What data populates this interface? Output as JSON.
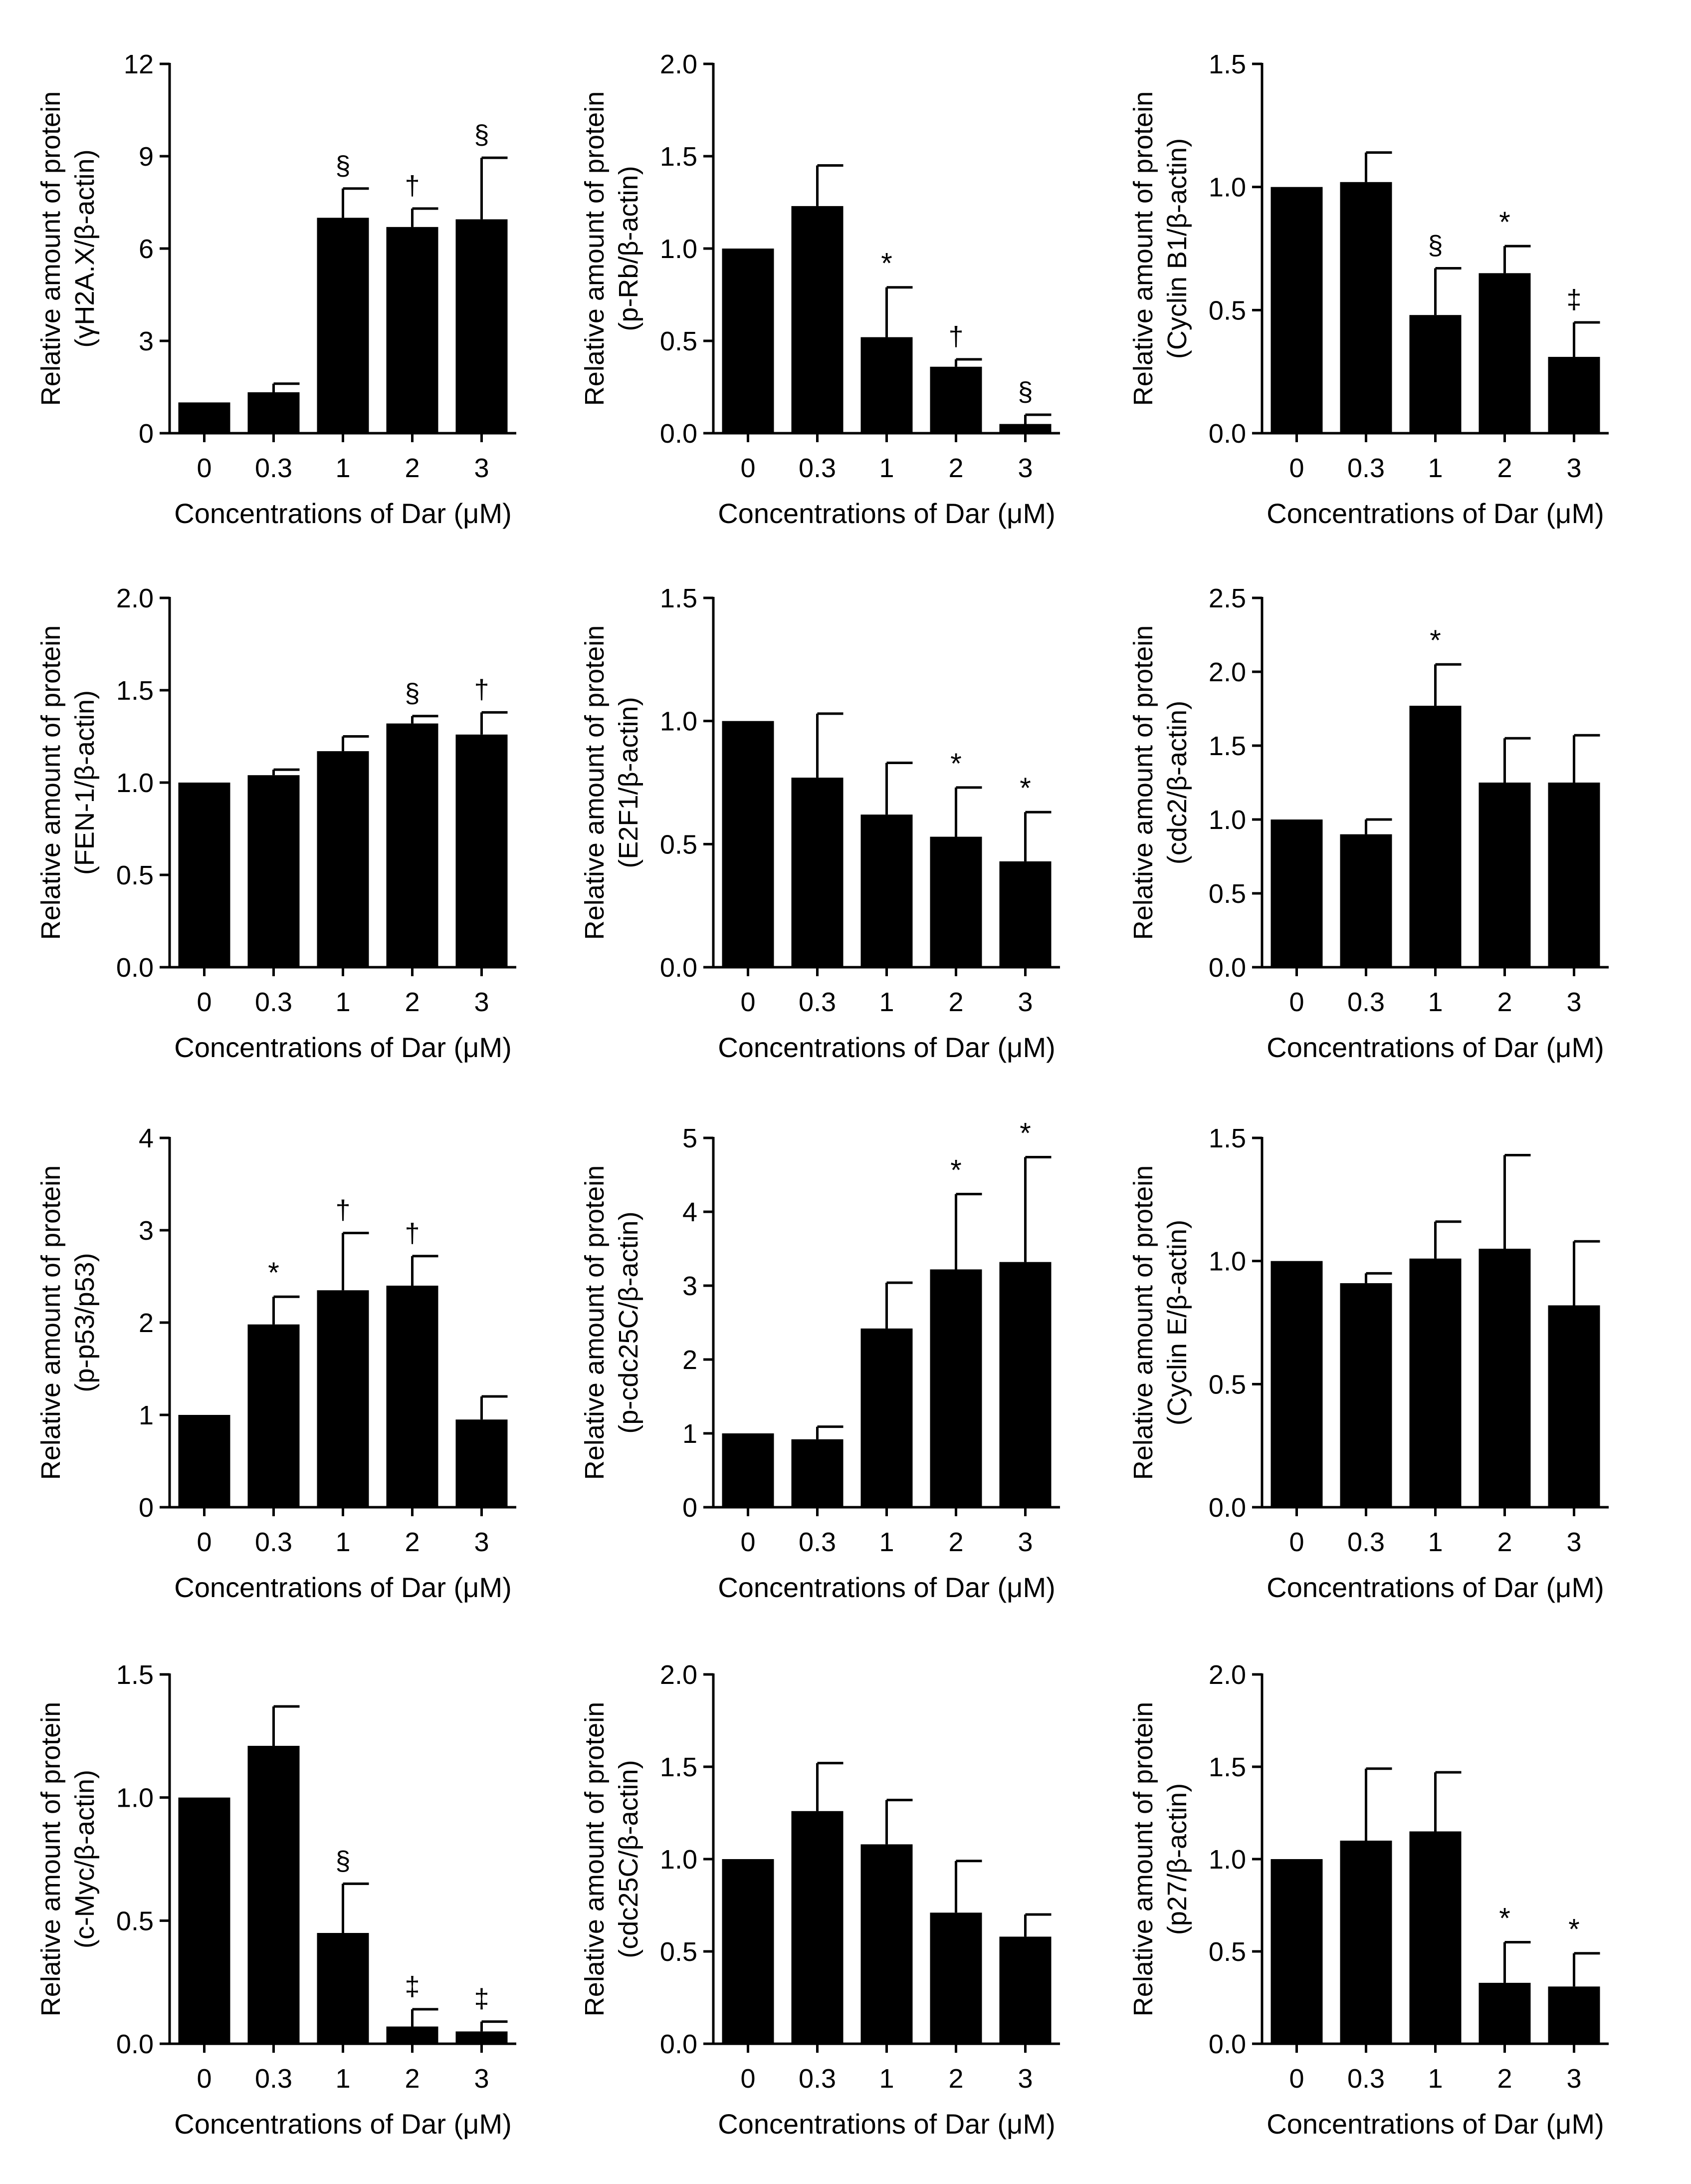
{
  "figure": {
    "bar_color": "#000000",
    "axis_color": "#000000"
  },
  "chart_data": [
    {
      "type": "bar",
      "id": "gamma-h2ax",
      "categories": [
        "0",
        "0.3",
        "1",
        "2",
        "3"
      ],
      "values": [
        1.0,
        1.33,
        7.0,
        6.7,
        6.95
      ],
      "errors": [
        0,
        0.28,
        0.95,
        0.6,
        2.0
      ],
      "marks": [
        "",
        "",
        "§",
        "†",
        "§"
      ],
      "ylim": [
        0,
        12
      ],
      "yticks": [
        "0",
        "3",
        "6",
        "9",
        "12"
      ],
      "ylabel": [
        "Relative amount of protein",
        "(γH2A.X/β-actin)"
      ],
      "xlabel": "Concentrations of Dar (μM)"
    },
    {
      "type": "bar",
      "id": "p-rb",
      "categories": [
        "0",
        "0.3",
        "1",
        "2",
        "3"
      ],
      "values": [
        1.0,
        1.23,
        0.52,
        0.36,
        0.05
      ],
      "errors": [
        0,
        0.22,
        0.27,
        0.04,
        0.05
      ],
      "marks": [
        "",
        "",
        "*",
        "†",
        "§"
      ],
      "ylim": [
        0,
        2.0
      ],
      "yticks": [
        "0.0",
        "0.5",
        "1.0",
        "1.5",
        "2.0"
      ],
      "ylabel": [
        "Relative amount of protein",
        "(p-Rb/β-actin)"
      ],
      "xlabel": "Concentrations of Dar (μM)"
    },
    {
      "type": "bar",
      "id": "cyclin-b1",
      "categories": [
        "0",
        "0.3",
        "1",
        "2",
        "3"
      ],
      "values": [
        1.0,
        1.02,
        0.48,
        0.65,
        0.31
      ],
      "errors": [
        0,
        0.12,
        0.19,
        0.11,
        0.14
      ],
      "marks": [
        "",
        "",
        "§",
        "*",
        "‡"
      ],
      "ylim": [
        0,
        1.5
      ],
      "yticks": [
        "0.0",
        "0.5",
        "1.0",
        "1.5"
      ],
      "ylabel": [
        "Relative amount of protein",
        "(Cyclin B1/β-actin)"
      ],
      "xlabel": "Concentrations of Dar (μM)"
    },
    {
      "type": "bar",
      "id": "fen-1",
      "categories": [
        "0",
        "0.3",
        "1",
        "2",
        "3"
      ],
      "values": [
        1.0,
        1.04,
        1.17,
        1.32,
        1.26
      ],
      "errors": [
        0,
        0.03,
        0.08,
        0.04,
        0.12
      ],
      "marks": [
        "",
        "",
        "",
        "§",
        "†"
      ],
      "ylim": [
        0,
        2.0
      ],
      "yticks": [
        "0.0",
        "0.5",
        "1.0",
        "1.5",
        "2.0"
      ],
      "ylabel": [
        "Relative amount of protein",
        "(FEN-1/β-actin)"
      ],
      "xlabel": "Concentrations of Dar (μM)"
    },
    {
      "type": "bar",
      "id": "e2f1",
      "categories": [
        "0",
        "0.3",
        "1",
        "2",
        "3"
      ],
      "values": [
        1.0,
        0.77,
        0.62,
        0.53,
        0.43
      ],
      "errors": [
        0,
        0.26,
        0.21,
        0.2,
        0.2
      ],
      "marks": [
        "",
        "",
        "",
        "*",
        "*"
      ],
      "ylim": [
        0,
        1.5
      ],
      "yticks": [
        "0.0",
        "0.5",
        "1.0",
        "1.5"
      ],
      "ylabel": [
        "Relative amount of protein",
        "(E2F1/β-actin)"
      ],
      "xlabel": "Concentrations of Dar (μM)"
    },
    {
      "type": "bar",
      "id": "cdc2",
      "categories": [
        "0",
        "0.3",
        "1",
        "2",
        "3"
      ],
      "values": [
        1.0,
        0.9,
        1.77,
        1.25,
        1.25
      ],
      "errors": [
        0,
        0.1,
        0.28,
        0.3,
        0.32
      ],
      "marks": [
        "",
        "",
        "*",
        "",
        ""
      ],
      "ylim": [
        0,
        2.5
      ],
      "yticks": [
        "0.0",
        "0.5",
        "1.0",
        "1.5",
        "2.0",
        "2.5"
      ],
      "ylabel": [
        "Relative amount of protein",
        "(cdc2/β-actin)"
      ],
      "xlabel": "Concentrations of Dar (μM)"
    },
    {
      "type": "bar",
      "id": "p-p53",
      "categories": [
        "0",
        "0.3",
        "1",
        "2",
        "3"
      ],
      "values": [
        1.0,
        1.98,
        2.35,
        2.4,
        0.95
      ],
      "errors": [
        0,
        0.3,
        0.62,
        0.32,
        0.25
      ],
      "marks": [
        "",
        "*",
        "†",
        "†",
        ""
      ],
      "ylim": [
        0,
        4
      ],
      "yticks": [
        "0",
        "1",
        "2",
        "3",
        "4"
      ],
      "ylabel": [
        "Relative amount of protein",
        "(p-p53/p53)"
      ],
      "xlabel": "Concentrations of Dar (μM)"
    },
    {
      "type": "bar",
      "id": "p-cdc25c",
      "categories": [
        "0",
        "0.3",
        "1",
        "2",
        "3"
      ],
      "values": [
        1.0,
        0.92,
        2.42,
        3.22,
        3.32
      ],
      "errors": [
        0,
        0.17,
        0.62,
        1.02,
        1.42
      ],
      "marks": [
        "",
        "",
        "",
        "*",
        "*"
      ],
      "ylim": [
        0,
        5
      ],
      "yticks": [
        "0",
        "1",
        "2",
        "3",
        "4",
        "5"
      ],
      "ylabel": [
        "Relative amount of protein",
        "(p-cdc25C/β-actin)"
      ],
      "xlabel": "Concentrations of Dar (μM)"
    },
    {
      "type": "bar",
      "id": "cyclin-e",
      "categories": [
        "0",
        "0.3",
        "1",
        "2",
        "3"
      ],
      "values": [
        1.0,
        0.91,
        1.01,
        1.05,
        0.82
      ],
      "errors": [
        0,
        0.04,
        0.15,
        0.38,
        0.26
      ],
      "marks": [
        "",
        "",
        "",
        "",
        ""
      ],
      "ylim": [
        0,
        1.5
      ],
      "yticks": [
        "0.0",
        "0.5",
        "1.0",
        "1.5"
      ],
      "ylabel": [
        "Relative amount of protein",
        "(Cyclin E/β-actin)"
      ],
      "xlabel": "Concentrations of Dar (μM)"
    },
    {
      "type": "bar",
      "id": "c-myc",
      "categories": [
        "0",
        "0.3",
        "1",
        "2",
        "3"
      ],
      "values": [
        1.0,
        1.21,
        0.45,
        0.07,
        0.05
      ],
      "errors": [
        0,
        0.16,
        0.2,
        0.07,
        0.04
      ],
      "marks": [
        "",
        "",
        "§",
        "‡",
        "‡"
      ],
      "ylim": [
        0,
        1.5
      ],
      "yticks": [
        "0.0",
        "0.5",
        "1.0",
        "1.5"
      ],
      "ylabel": [
        "Relative amount of protein",
        "(c-Myc/β-actin)"
      ],
      "xlabel": "Concentrations of Dar (μM)"
    },
    {
      "type": "bar",
      "id": "cdc25c",
      "categories": [
        "0",
        "0.3",
        "1",
        "2",
        "3"
      ],
      "values": [
        1.0,
        1.26,
        1.08,
        0.71,
        0.58
      ],
      "errors": [
        0,
        0.26,
        0.24,
        0.28,
        0.12
      ],
      "marks": [
        "",
        "",
        "",
        "",
        ""
      ],
      "ylim": [
        0,
        2.0
      ],
      "yticks": [
        "0.0",
        "0.5",
        "1.0",
        "1.5",
        "2.0"
      ],
      "ylabel": [
        "Relative amount of protein",
        "(cdc25C/β-actin)"
      ],
      "xlabel": "Concentrations of Dar (μM)"
    },
    {
      "type": "bar",
      "id": "p27",
      "categories": [
        "0",
        "0.3",
        "1",
        "2",
        "3"
      ],
      "values": [
        1.0,
        1.1,
        1.15,
        0.33,
        0.31
      ],
      "errors": [
        0,
        0.39,
        0.32,
        0.22,
        0.18
      ],
      "marks": [
        "",
        "",
        "",
        "*",
        "*"
      ],
      "ylim": [
        0,
        2.0
      ],
      "yticks": [
        "0.0",
        "0.5",
        "1.0",
        "1.5",
        "2.0"
      ],
      "ylabel": [
        "Relative amount of protein",
        "(p27/β-actin)"
      ],
      "xlabel": "Concentrations of Dar (μM)"
    }
  ]
}
